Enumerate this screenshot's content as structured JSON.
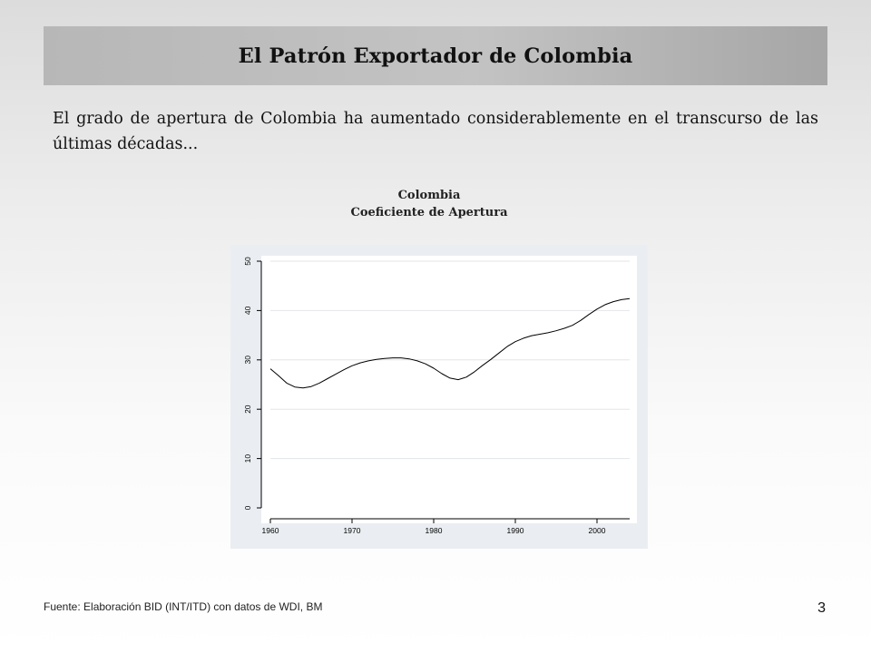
{
  "slide": {
    "title": "El Patrón Exportador de Colombia",
    "intro": "El grado de apertura de Colombia ha aumentado considerablemente en el transcurso de las últimas décadas...",
    "source": "Fuente: Elaboración BID (INT/ITD)  con datos de WDI, BM",
    "page_number": "3"
  },
  "chart_data": {
    "type": "line",
    "title": "Colombia",
    "subtitle": "Coeficiente de Apertura",
    "xlabel": "",
    "ylabel": "",
    "xlim": [
      1960,
      2004
    ],
    "ylim": [
      0,
      50
    ],
    "x_ticks": [
      1960,
      1970,
      1980,
      1990,
      2000
    ],
    "x_tick_labels": [
      "1960",
      "1970",
      "1980",
      "1990",
      "2000"
    ],
    "y_ticks": [
      0,
      10,
      20,
      30,
      40,
      50
    ],
    "y_tick_labels": [
      "0",
      "10",
      "20",
      "30",
      "40",
      "50"
    ],
    "grid": true,
    "legend": "none",
    "line_color": "#000000",
    "series": [
      {
        "x": [
          1960,
          1961,
          1962,
          1963,
          1964,
          1965,
          1966,
          1967,
          1968,
          1969,
          1970,
          1971,
          1972,
          1973,
          1974,
          1975,
          1976,
          1977,
          1978,
          1979,
          1980,
          1981,
          1982,
          1983,
          1984,
          1985,
          1986,
          1987,
          1988,
          1989,
          1990,
          1991,
          1992,
          1993,
          1994,
          1995,
          1996,
          1997,
          1998,
          1999,
          2000,
          2001,
          2002,
          2003,
          2004
        ],
        "y": [
          28.2,
          26.8,
          25.3,
          24.5,
          24.3,
          24.6,
          25.3,
          26.2,
          27.1,
          28.0,
          28.8,
          29.4,
          29.8,
          30.1,
          30.3,
          30.4,
          30.4,
          30.2,
          29.8,
          29.2,
          28.3,
          27.2,
          26.3,
          26.0,
          26.5,
          27.6,
          28.9,
          30.1,
          31.4,
          32.7,
          33.7,
          34.4,
          34.9,
          35.2,
          35.5,
          35.9,
          36.4,
          37.0,
          38.0,
          39.2,
          40.3,
          41.2,
          41.8,
          42.2,
          42.4
        ]
      }
    ]
  }
}
